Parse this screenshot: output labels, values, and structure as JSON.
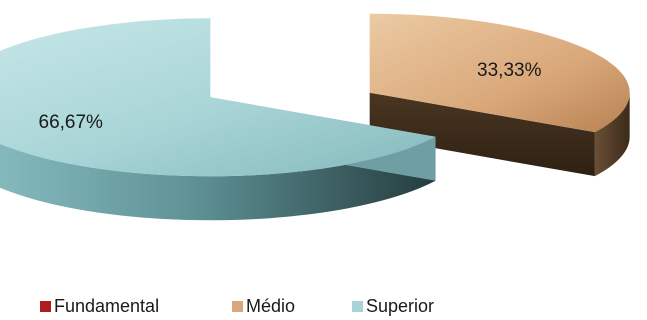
{
  "chart_data": {
    "type": "pie",
    "style": "3d-exploded",
    "legend_position": "bottom",
    "series": [
      {
        "name": "Fundamental",
        "value": 0,
        "label": "",
        "color": "#b01c1c"
      },
      {
        "name": "Médio",
        "value": 33.33,
        "label": "33,33%",
        "color": "#d9a87a"
      },
      {
        "name": "Superior",
        "value": 66.67,
        "label": "66,67%",
        "color": "#a8d4d6"
      }
    ]
  }
}
